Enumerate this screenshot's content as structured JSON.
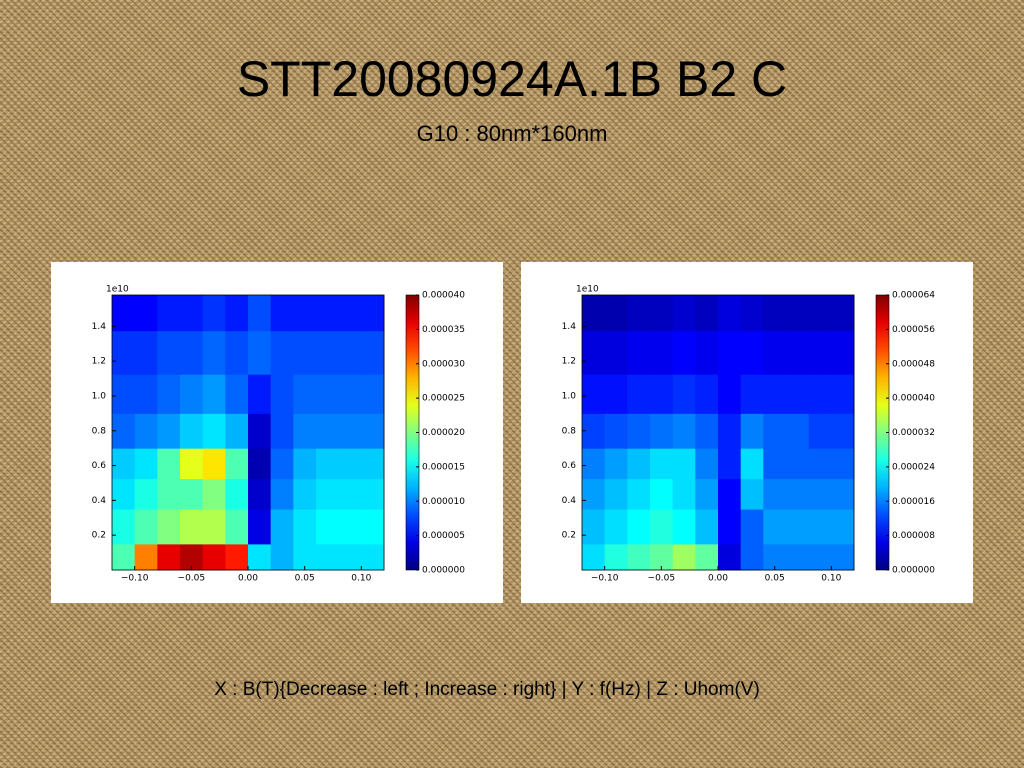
{
  "slide": {
    "title": "STT20080924A.1B B2 C",
    "subtitle": "G10 : 80nm*160nm",
    "footer": "X : B(T){Decrease : left ; Increase : right} | Y : f(Hz) | Z : Uhom(V)"
  },
  "chart_data": [
    {
      "type": "contour",
      "colormap": "jet",
      "offset_label": "1e10",
      "xlim": [
        -0.12,
        0.12
      ],
      "ylim": [
        0,
        1.58
      ],
      "xticks": [
        {
          "value": -0.1,
          "label": "−0.10"
        },
        {
          "value": -0.05,
          "label": "−0.05"
        },
        {
          "value": 0,
          "label": "0.00"
        },
        {
          "value": 0.05,
          "label": "0.05"
        },
        {
          "value": 0.1,
          "label": "0.10"
        }
      ],
      "yticks": [
        0.2,
        0.4,
        0.6,
        0.8,
        {
          "value": 1,
          "label": "1.0"
        },
        1.2,
        1.4
      ],
      "zlim": [
        0,
        4e-05
      ],
      "zticks": [
        {
          "value": 0,
          "label": "0.000000"
        },
        {
          "value": 5e-06,
          "label": "0.000005"
        },
        {
          "value": 1e-05,
          "label": "0.000010"
        },
        {
          "value": 1.5e-05,
          "label": "0.000015"
        },
        {
          "value": 2e-05,
          "label": "0.000020"
        },
        {
          "value": 2.5e-05,
          "label": "0.000025"
        },
        {
          "value": 3e-05,
          "label": "0.000030"
        },
        {
          "value": 3.5e-05,
          "label": "0.000035"
        },
        {
          "value": 4e-05,
          "label": "0.000040"
        }
      ],
      "x": [
        -0.11,
        -0.09,
        -0.07,
        -0.05,
        -0.03,
        -0.01,
        0.01,
        0.03,
        0.05,
        0.07,
        0.09,
        0.11
      ],
      "y": [
        0.05,
        0.25,
        0.45,
        0.6,
        0.8,
        1.0,
        1.25,
        1.5
      ],
      "z": [
        [
          1.8e-05,
          3e-05,
          3.6e-05,
          3.8e-05,
          3.6e-05,
          3.4e-05,
          1.4e-05,
          1.2e-05,
          1.4e-05,
          1.4e-05,
          1.4e-05,
          1.4e-05
        ],
        [
          1.6e-05,
          1.8e-05,
          2e-05,
          2.2e-05,
          2.2e-05,
          1.8e-05,
          4e-06,
          1.2e-05,
          1.4e-05,
          1.5e-05,
          1.5e-05,
          1.5e-05
        ],
        [
          1.4e-05,
          1.6e-05,
          1.8e-05,
          1.8e-05,
          2e-05,
          1.6e-05,
          3e-06,
          1e-05,
          1.3e-05,
          1.4e-05,
          1.4e-05,
          1.4e-05
        ],
        [
          1.3e-05,
          1.4e-05,
          1.8e-05,
          2.4e-05,
          2.6e-05,
          1.8e-05,
          2e-06,
          9e-06,
          1.2e-05,
          1.3e-05,
          1.3e-05,
          1.3e-05
        ],
        [
          9e-06,
          1e-05,
          1.1e-05,
          1.3e-05,
          1.4e-05,
          1.2e-05,
          3e-06,
          8e-06,
          1e-05,
          1e-05,
          1e-05,
          1e-05
        ],
        [
          8e-06,
          8e-06,
          9e-06,
          1e-05,
          1.1e-05,
          9e-06,
          6e-06,
          8e-06,
          9e-06,
          9e-06,
          9e-06,
          9e-06
        ],
        [
          7e-06,
          7e-06,
          8e-06,
          8e-06,
          9e-06,
          8e-06,
          9e-06,
          8e-06,
          8e-06,
          8e-06,
          8e-06,
          8e-06
        ],
        [
          5e-06,
          5e-06,
          6e-06,
          6e-06,
          7e-06,
          6e-06,
          8e-06,
          6e-06,
          6e-06,
          6e-06,
          6e-06,
          6e-06
        ]
      ]
    },
    {
      "type": "contour",
      "colormap": "jet",
      "offset_label": "1e10",
      "xlim": [
        -0.12,
        0.12
      ],
      "ylim": [
        0,
        1.58
      ],
      "xticks": [
        {
          "value": -0.1,
          "label": "−0.10"
        },
        {
          "value": -0.05,
          "label": "−0.05"
        },
        {
          "value": 0,
          "label": "0.00"
        },
        {
          "value": 0.05,
          "label": "0.05"
        },
        {
          "value": 0.1,
          "label": "0.10"
        }
      ],
      "yticks": [
        0.2,
        0.4,
        0.6,
        0.8,
        {
          "value": 1,
          "label": "1.0"
        },
        1.2,
        1.4
      ],
      "zlim": [
        0,
        6.4e-05
      ],
      "zticks": [
        {
          "value": 0,
          "label": "0.000000"
        },
        {
          "value": 8e-06,
          "label": "0.000008"
        },
        {
          "value": 1.6e-05,
          "label": "0.000016"
        },
        {
          "value": 2.4e-05,
          "label": "0.000024"
        },
        {
          "value": 3.2e-05,
          "label": "0.000032"
        },
        {
          "value": 4e-05,
          "label": "0.000040"
        },
        {
          "value": 4.8e-05,
          "label": "0.000048"
        },
        {
          "value": 5.6e-05,
          "label": "0.000056"
        },
        {
          "value": 6.4e-05,
          "label": "0.000064"
        }
      ],
      "x": [
        -0.11,
        -0.09,
        -0.07,
        -0.05,
        -0.03,
        -0.01,
        0.01,
        0.03,
        0.05,
        0.07,
        0.09,
        0.11
      ],
      "y": [
        0.05,
        0.25,
        0.45,
        0.6,
        0.8,
        1.0,
        1.25,
        1.5
      ],
      "z": [
        [
          2.2e-05,
          2.6e-05,
          2.8e-05,
          3e-05,
          3.4e-05,
          3e-05,
          6e-06,
          1.4e-05,
          1.6e-05,
          1.6e-05,
          1.6e-05,
          1.6e-05
        ],
        [
          2e-05,
          2.2e-05,
          2.4e-05,
          2.6e-05,
          2.4e-05,
          2e-05,
          8e-06,
          1.4e-05,
          1.8e-05,
          1.8e-05,
          1.8e-05,
          1.8e-05
        ],
        [
          1.8e-05,
          2e-05,
          2.2e-05,
          2.4e-05,
          2.2e-05,
          1.8e-05,
          8e-06,
          2e-05,
          1.6e-05,
          1.6e-05,
          1.6e-05,
          1.6e-05
        ],
        [
          1.6e-05,
          1.8e-05,
          2e-05,
          2.2e-05,
          2.2e-05,
          1.6e-05,
          1e-05,
          2.2e-05,
          1.4e-05,
          1.4e-05,
          1.4e-05,
          1.4e-05
        ],
        [
          1.2e-05,
          1.3e-05,
          1.4e-05,
          1.5e-05,
          1.6e-05,
          1.4e-05,
          1e-05,
          1.6e-05,
          1.4e-05,
          1.4e-05,
          1.2e-05,
          1.2e-05
        ],
        [
          9e-06,
          9e-06,
          1e-05,
          1e-05,
          1.1e-05,
          1e-05,
          8e-06,
          1e-05,
          1e-05,
          1e-05,
          1e-05,
          1e-05
        ],
        [
          6e-06,
          6e-06,
          7e-06,
          7e-06,
          8e-06,
          7e-06,
          8e-06,
          8e-06,
          7e-06,
          7e-06,
          7e-06,
          7e-06
        ],
        [
          3e-06,
          3e-06,
          4e-06,
          4e-06,
          5e-06,
          4e-06,
          6e-06,
          5e-06,
          4e-06,
          4e-06,
          4e-06,
          4e-06
        ]
      ]
    }
  ]
}
